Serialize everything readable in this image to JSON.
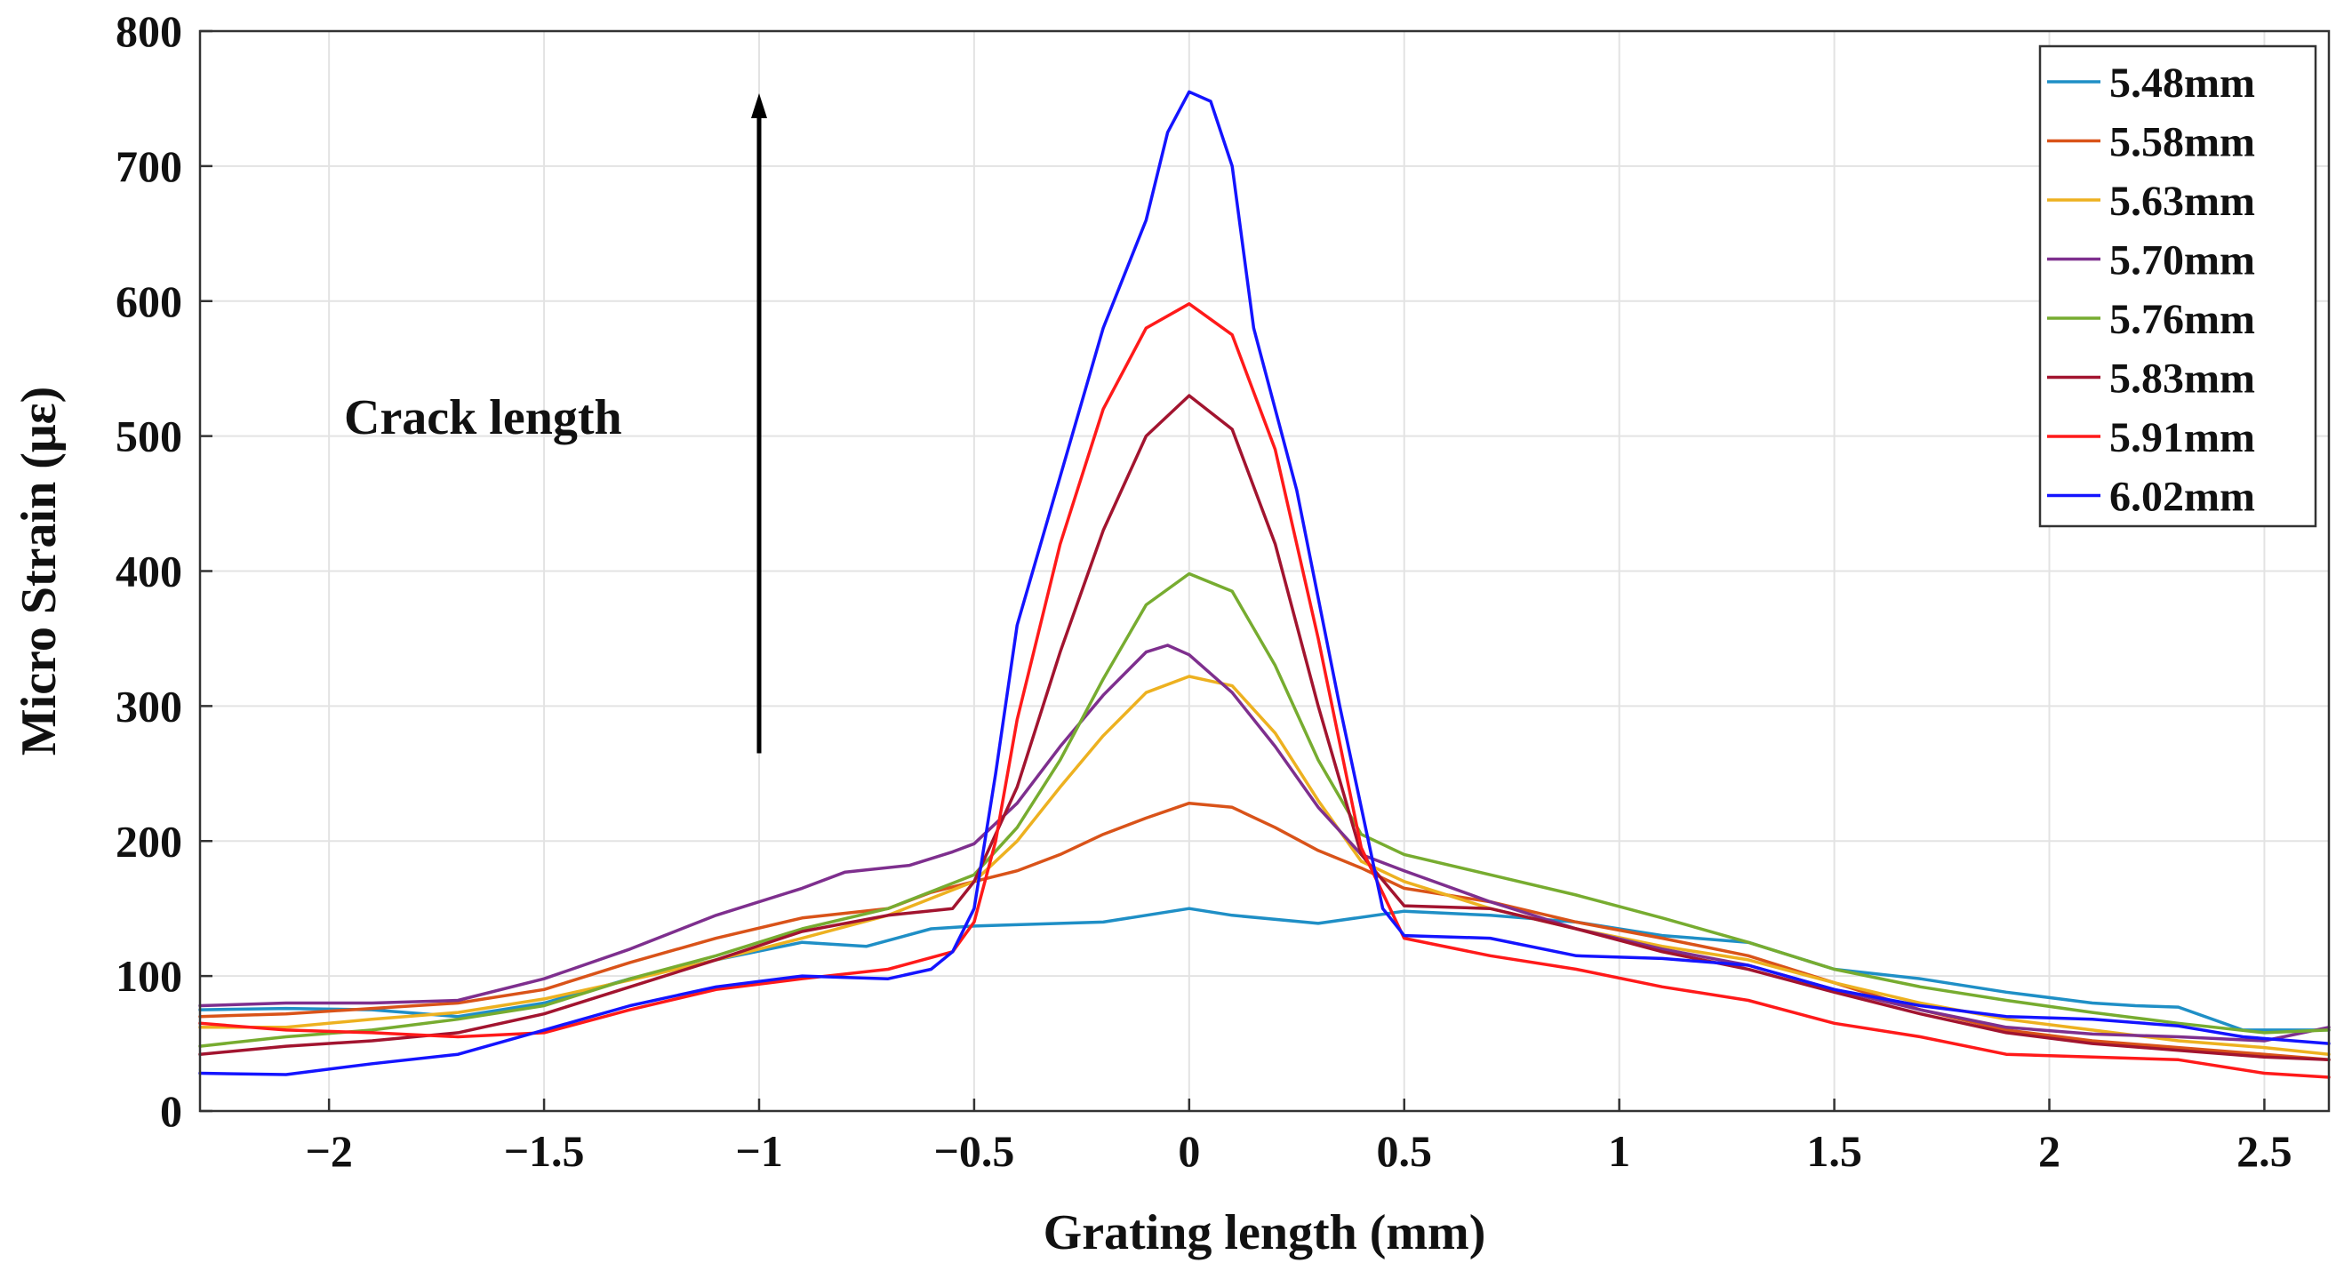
{
  "chart_data": {
    "type": "line",
    "xlabel": "Grating length (mm)",
    "ylabel": "Micro Strain (με)",
    "xlim": [
      -2.3,
      2.65
    ],
    "ylim": [
      0,
      800
    ],
    "xticks": [
      -2,
      -1.5,
      -1,
      -0.5,
      0,
      0.5,
      1,
      1.5,
      2,
      2.5
    ],
    "xtick_labels": [
      "−2",
      "−1.5",
      "−1",
      "−0.5",
      "0",
      "0.5",
      "1",
      "1.5",
      "2",
      "2.5"
    ],
    "yticks": [
      0,
      100,
      200,
      300,
      400,
      500,
      600,
      700,
      800
    ],
    "ytick_labels": [
      "0",
      "100",
      "200",
      "300",
      "400",
      "500",
      "600",
      "700",
      "800"
    ],
    "grid": true,
    "legend_position": "top-right",
    "annotation": {
      "text": "Crack length",
      "arrow_x": -1,
      "arrow_from_y": 265,
      "arrow_to_y": 750
    },
    "series": [
      {
        "name": "5.48mm",
        "color": "#1f8fc6",
        "points": [
          [
            -2.3,
            75
          ],
          [
            -2.1,
            76
          ],
          [
            -1.9,
            75
          ],
          [
            -1.7,
            70
          ],
          [
            -1.5,
            80
          ],
          [
            -1.3,
            98
          ],
          [
            -1.1,
            112
          ],
          [
            -0.9,
            125
          ],
          [
            -0.75,
            122
          ],
          [
            -0.6,
            135
          ],
          [
            -0.5,
            137
          ],
          [
            -0.4,
            138
          ],
          [
            -0.2,
            140
          ],
          [
            -0.1,
            145
          ],
          [
            0,
            150
          ],
          [
            0.1,
            145
          ],
          [
            0.3,
            139
          ],
          [
            0.5,
            148
          ],
          [
            0.7,
            145
          ],
          [
            0.9,
            140
          ],
          [
            1.1,
            130
          ],
          [
            1.3,
            125
          ],
          [
            1.5,
            105
          ],
          [
            1.7,
            98
          ],
          [
            1.9,
            88
          ],
          [
            2.1,
            80
          ],
          [
            2.2,
            78
          ],
          [
            2.3,
            77
          ],
          [
            2.45,
            60
          ],
          [
            2.65,
            60
          ]
        ]
      },
      {
        "name": "5.58mm",
        "color": "#d95319",
        "points": [
          [
            -2.3,
            70
          ],
          [
            -2.1,
            72
          ],
          [
            -1.9,
            76
          ],
          [
            -1.7,
            80
          ],
          [
            -1.5,
            90
          ],
          [
            -1.3,
            110
          ],
          [
            -1.1,
            128
          ],
          [
            -0.9,
            143
          ],
          [
            -0.7,
            150
          ],
          [
            -0.6,
            162
          ],
          [
            -0.5,
            170
          ],
          [
            -0.4,
            178
          ],
          [
            -0.3,
            190
          ],
          [
            -0.2,
            205
          ],
          [
            -0.1,
            217
          ],
          [
            0,
            228
          ],
          [
            0.1,
            225
          ],
          [
            0.2,
            210
          ],
          [
            0.3,
            193
          ],
          [
            0.4,
            180
          ],
          [
            0.5,
            165
          ],
          [
            0.7,
            155
          ],
          [
            0.9,
            140
          ],
          [
            1.1,
            128
          ],
          [
            1.3,
            115
          ],
          [
            1.5,
            95
          ],
          [
            1.7,
            75
          ],
          [
            1.9,
            60
          ],
          [
            2.1,
            52
          ],
          [
            2.3,
            47
          ],
          [
            2.5,
            42
          ],
          [
            2.65,
            38
          ]
        ]
      },
      {
        "name": "5.63mm",
        "color": "#edb120",
        "points": [
          [
            -2.3,
            62
          ],
          [
            -2.1,
            62
          ],
          [
            -1.9,
            68
          ],
          [
            -1.7,
            73
          ],
          [
            -1.5,
            83
          ],
          [
            -1.3,
            97
          ],
          [
            -1.1,
            112
          ],
          [
            -0.9,
            128
          ],
          [
            -0.7,
            145
          ],
          [
            -0.5,
            170
          ],
          [
            -0.4,
            200
          ],
          [
            -0.3,
            240
          ],
          [
            -0.2,
            278
          ],
          [
            -0.1,
            310
          ],
          [
            0,
            322
          ],
          [
            0.1,
            315
          ],
          [
            0.2,
            280
          ],
          [
            0.3,
            230
          ],
          [
            0.4,
            185
          ],
          [
            0.5,
            170
          ],
          [
            0.7,
            150
          ],
          [
            0.9,
            135
          ],
          [
            1.1,
            122
          ],
          [
            1.3,
            112
          ],
          [
            1.5,
            95
          ],
          [
            1.7,
            80
          ],
          [
            1.9,
            68
          ],
          [
            2.1,
            60
          ],
          [
            2.3,
            52
          ],
          [
            2.5,
            47
          ],
          [
            2.65,
            42
          ]
        ]
      },
      {
        "name": "5.70mm",
        "color": "#7e2f8e",
        "points": [
          [
            -2.3,
            78
          ],
          [
            -2.1,
            80
          ],
          [
            -1.9,
            80
          ],
          [
            -1.7,
            82
          ],
          [
            -1.5,
            98
          ],
          [
            -1.3,
            120
          ],
          [
            -1.1,
            145
          ],
          [
            -0.9,
            165
          ],
          [
            -0.8,
            177
          ],
          [
            -0.65,
            182
          ],
          [
            -0.55,
            192
          ],
          [
            -0.5,
            198
          ],
          [
            -0.4,
            228
          ],
          [
            -0.3,
            270
          ],
          [
            -0.2,
            308
          ],
          [
            -0.1,
            340
          ],
          [
            -0.05,
            345
          ],
          [
            0,
            338
          ],
          [
            0.1,
            310
          ],
          [
            0.2,
            270
          ],
          [
            0.3,
            225
          ],
          [
            0.4,
            190
          ],
          [
            0.5,
            178
          ],
          [
            0.7,
            155
          ],
          [
            0.9,
            135
          ],
          [
            1.1,
            120
          ],
          [
            1.3,
            108
          ],
          [
            1.5,
            90
          ],
          [
            1.7,
            75
          ],
          [
            1.9,
            62
          ],
          [
            2.1,
            57
          ],
          [
            2.3,
            55
          ],
          [
            2.5,
            52
          ],
          [
            2.65,
            62
          ]
        ]
      },
      {
        "name": "5.76mm",
        "color": "#77ac30",
        "points": [
          [
            -2.3,
            48
          ],
          [
            -2.1,
            55
          ],
          [
            -1.9,
            60
          ],
          [
            -1.7,
            68
          ],
          [
            -1.5,
            78
          ],
          [
            -1.3,
            98
          ],
          [
            -1.1,
            115
          ],
          [
            -0.9,
            135
          ],
          [
            -0.7,
            150
          ],
          [
            -0.5,
            175
          ],
          [
            -0.4,
            210
          ],
          [
            -0.3,
            260
          ],
          [
            -0.2,
            320
          ],
          [
            -0.1,
            375
          ],
          [
            0,
            398
          ],
          [
            0.1,
            385
          ],
          [
            0.2,
            330
          ],
          [
            0.3,
            260
          ],
          [
            0.4,
            205
          ],
          [
            0.5,
            190
          ],
          [
            0.7,
            175
          ],
          [
            0.9,
            160
          ],
          [
            1.1,
            143
          ],
          [
            1.3,
            125
          ],
          [
            1.5,
            105
          ],
          [
            1.7,
            92
          ],
          [
            1.9,
            82
          ],
          [
            2.1,
            73
          ],
          [
            2.3,
            65
          ],
          [
            2.5,
            58
          ],
          [
            2.65,
            60
          ]
        ]
      },
      {
        "name": "5.83mm",
        "color": "#a2142f",
        "points": [
          [
            -2.3,
            42
          ],
          [
            -2.1,
            48
          ],
          [
            -1.9,
            52
          ],
          [
            -1.7,
            58
          ],
          [
            -1.5,
            72
          ],
          [
            -1.3,
            92
          ],
          [
            -1.1,
            112
          ],
          [
            -0.9,
            133
          ],
          [
            -0.7,
            145
          ],
          [
            -0.55,
            150
          ],
          [
            -0.5,
            170
          ],
          [
            -0.4,
            240
          ],
          [
            -0.3,
            340
          ],
          [
            -0.2,
            430
          ],
          [
            -0.1,
            500
          ],
          [
            0,
            530
          ],
          [
            0.1,
            505
          ],
          [
            0.2,
            420
          ],
          [
            0.3,
            300
          ],
          [
            0.4,
            190
          ],
          [
            0.5,
            152
          ],
          [
            0.7,
            150
          ],
          [
            0.9,
            135
          ],
          [
            1.1,
            118
          ],
          [
            1.3,
            105
          ],
          [
            1.5,
            88
          ],
          [
            1.7,
            72
          ],
          [
            1.9,
            58
          ],
          [
            2.1,
            50
          ],
          [
            2.3,
            45
          ],
          [
            2.5,
            40
          ],
          [
            2.65,
            38
          ]
        ]
      },
      {
        "name": "5.91mm",
        "color": "#ff1a1a",
        "points": [
          [
            -2.3,
            65
          ],
          [
            -2.1,
            60
          ],
          [
            -1.9,
            58
          ],
          [
            -1.7,
            55
          ],
          [
            -1.5,
            58
          ],
          [
            -1.3,
            75
          ],
          [
            -1.1,
            90
          ],
          [
            -0.9,
            98
          ],
          [
            -0.7,
            105
          ],
          [
            -0.55,
            118
          ],
          [
            -0.5,
            140
          ],
          [
            -0.45,
            200
          ],
          [
            -0.4,
            290
          ],
          [
            -0.3,
            420
          ],
          [
            -0.2,
            520
          ],
          [
            -0.1,
            580
          ],
          [
            0,
            598
          ],
          [
            0.1,
            575
          ],
          [
            0.2,
            490
          ],
          [
            0.3,
            350
          ],
          [
            0.4,
            195
          ],
          [
            0.5,
            128
          ],
          [
            0.7,
            115
          ],
          [
            0.9,
            105
          ],
          [
            1.1,
            92
          ],
          [
            1.3,
            82
          ],
          [
            1.5,
            65
          ],
          [
            1.7,
            55
          ],
          [
            1.9,
            42
          ],
          [
            2.1,
            40
          ],
          [
            2.3,
            38
          ],
          [
            2.5,
            28
          ],
          [
            2.65,
            25
          ]
        ]
      },
      {
        "name": "6.02mm",
        "color": "#1414ff",
        "points": [
          [
            -2.3,
            28
          ],
          [
            -2.1,
            27
          ],
          [
            -1.9,
            35
          ],
          [
            -1.7,
            42
          ],
          [
            -1.5,
            60
          ],
          [
            -1.3,
            78
          ],
          [
            -1.1,
            92
          ],
          [
            -0.9,
            100
          ],
          [
            -0.7,
            98
          ],
          [
            -0.6,
            105
          ],
          [
            -0.55,
            118
          ],
          [
            -0.5,
            150
          ],
          [
            -0.45,
            250
          ],
          [
            -0.4,
            360
          ],
          [
            -0.3,
            470
          ],
          [
            -0.2,
            580
          ],
          [
            -0.1,
            660
          ],
          [
            -0.05,
            725
          ],
          [
            0,
            755
          ],
          [
            0.05,
            748
          ],
          [
            0.1,
            700
          ],
          [
            0.15,
            580
          ],
          [
            0.25,
            460
          ],
          [
            0.35,
            300
          ],
          [
            0.45,
            150
          ],
          [
            0.5,
            130
          ],
          [
            0.7,
            128
          ],
          [
            0.9,
            115
          ],
          [
            1.1,
            113
          ],
          [
            1.3,
            108
          ],
          [
            1.5,
            90
          ],
          [
            1.7,
            78
          ],
          [
            1.9,
            70
          ],
          [
            2.1,
            68
          ],
          [
            2.3,
            63
          ],
          [
            2.45,
            55
          ],
          [
            2.65,
            50
          ]
        ]
      }
    ]
  }
}
